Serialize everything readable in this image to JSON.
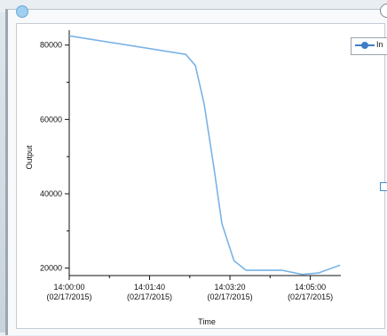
{
  "legend": {
    "label": "In"
  },
  "colors": {
    "series": "#7ab3e6",
    "axis": "#111111"
  },
  "chart_data": {
    "type": "line",
    "xlabel": "Time",
    "ylabel": "Output",
    "xlim": [
      "14:00:00",
      "14:05:38"
    ],
    "ylim": [
      18000,
      84000
    ],
    "y_ticks": [
      "20000",
      "40000",
      "60000",
      "80000"
    ],
    "x_ticks": [
      {
        "time": "14:00:00",
        "date": "(02/17/2015)"
      },
      {
        "time": "14:01:40",
        "date": "(02/17/2015)"
      },
      {
        "time": "14:03:20",
        "date": "(02/17/2015)"
      },
      {
        "time": "14:05:00",
        "date": "(02/17/2015)"
      }
    ],
    "series": [
      {
        "points": [
          [
            "14:00:00",
            82500
          ],
          [
            "14:02:25",
            77500
          ],
          [
            "14:02:37",
            74500
          ],
          [
            "14:02:48",
            64000
          ],
          [
            "14:03:00",
            47000
          ],
          [
            "14:03:10",
            32000
          ],
          [
            "14:03:25",
            22000
          ],
          [
            "14:03:40",
            19400
          ],
          [
            "14:04:25",
            19400
          ],
          [
            "14:04:50",
            18300
          ],
          [
            "14:05:10",
            18700
          ],
          [
            "14:05:37",
            20800
          ]
        ]
      }
    ]
  }
}
